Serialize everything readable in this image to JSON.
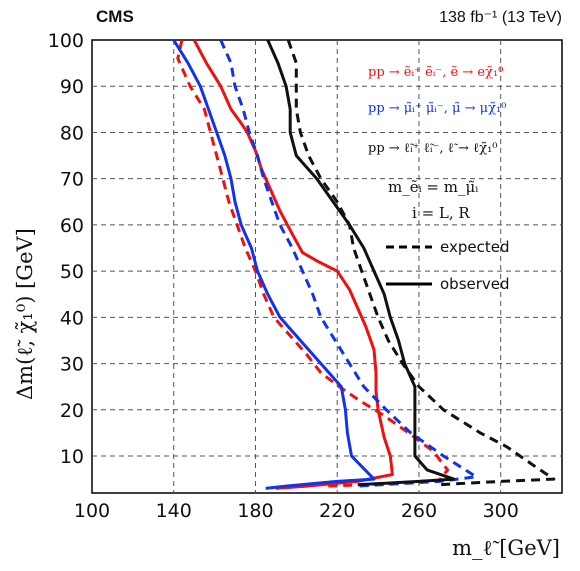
{
  "header": {
    "experiment": "CMS",
    "luminosity": "138 fb⁻¹ (13 TeV)"
  },
  "chart_data": {
    "type": "line",
    "xlabel": "m_ℓ̃ [GeV]",
    "ylabel": "Δm(ℓ̃, χ̃₁⁰) [GeV]",
    "xlim": [
      100,
      330
    ],
    "ylim": [
      2,
      100
    ],
    "x_ticks": [
      100,
      140,
      180,
      220,
      260,
      300
    ],
    "y_ticks": [
      10,
      20,
      30,
      40,
      50,
      60,
      70,
      80,
      90,
      100
    ],
    "grid": true,
    "grid_style": "dashed",
    "legend": {
      "processes": [
        {
          "text": "pp → ẽᵢ⁺ ẽᵢ⁻, ẽ → eχ̃₁⁰",
          "color": "#ee1111"
        },
        {
          "text": "pp → μ̃ᵢ⁺ μ̃ᵢ⁻, μ̃ → μχ̃₁⁰",
          "color": "#1133ee"
        },
        {
          "text": "pp → ℓ̃ᵢ⁺ ℓ̃ᵢ⁻, ℓ̃ → ℓχ̃₁⁰",
          "color": "#111111"
        }
      ],
      "mass_relation": "m_ẽᵢ = m_μ̃ᵢ",
      "index_relation": "i = L, R",
      "expected_label": "expected",
      "observed_label": "observed"
    },
    "series": [
      {
        "process": "selectron",
        "kind": "observed",
        "color": "#ee1111",
        "dash": false,
        "points": [
          [
            150,
            100
          ],
          [
            156,
            95
          ],
          [
            163,
            90
          ],
          [
            168,
            85
          ],
          [
            173,
            82
          ],
          [
            176,
            80
          ],
          [
            180,
            76
          ],
          [
            183,
            72
          ],
          [
            187,
            68
          ],
          [
            192,
            63
          ],
          [
            198,
            58
          ],
          [
            203,
            54
          ],
          [
            211,
            52
          ],
          [
            220,
            50
          ],
          [
            226,
            46
          ],
          [
            230,
            42
          ],
          [
            234,
            38
          ],
          [
            238,
            33
          ],
          [
            239,
            28
          ],
          [
            239,
            24
          ],
          [
            240,
            20
          ],
          [
            243,
            14
          ],
          [
            246,
            10
          ],
          [
            247,
            6
          ],
          [
            230,
            4.5
          ],
          [
            205,
            3.5
          ],
          [
            190,
            3
          ]
        ]
      },
      {
        "process": "selectron",
        "kind": "expected",
        "color": "#ee1111",
        "dash": true,
        "points": [
          [
            144,
            100
          ],
          [
            142,
            96
          ],
          [
            148,
            90
          ],
          [
            155,
            85
          ],
          [
            158,
            80
          ],
          [
            161,
            75
          ],
          [
            164,
            70
          ],
          [
            167,
            65
          ],
          [
            171,
            60
          ],
          [
            175,
            55
          ],
          [
            180,
            50
          ],
          [
            184,
            45
          ],
          [
            189,
            40
          ],
          [
            197,
            36
          ],
          [
            205,
            32
          ],
          [
            212,
            28
          ],
          [
            221,
            25
          ],
          [
            231,
            22
          ],
          [
            242,
            19
          ],
          [
            255,
            15
          ],
          [
            267,
            11
          ],
          [
            274,
            7
          ],
          [
            270,
            4.8
          ],
          [
            245,
            4
          ],
          [
            215,
            3.5
          ]
        ]
      },
      {
        "process": "smuon",
        "kind": "observed",
        "color": "#1133ee",
        "dash": false,
        "points": [
          [
            140,
            100
          ],
          [
            147,
            95
          ],
          [
            153,
            90
          ],
          [
            157,
            85
          ],
          [
            161,
            80
          ],
          [
            165,
            75
          ],
          [
            168,
            70
          ],
          [
            170,
            65
          ],
          [
            173,
            60
          ],
          [
            178,
            55
          ],
          [
            181,
            50
          ],
          [
            186,
            45
          ],
          [
            192,
            40
          ],
          [
            202,
            35
          ],
          [
            212,
            30
          ],
          [
            222,
            25
          ],
          [
            224,
            20
          ],
          [
            225,
            15
          ],
          [
            227,
            10
          ],
          [
            238,
            5
          ],
          [
            220,
            4.5
          ],
          [
            195,
            3.5
          ],
          [
            185,
            3
          ]
        ]
      },
      {
        "process": "smuon",
        "kind": "expected",
        "color": "#1133ee",
        "dash": true,
        "points": [
          [
            163,
            100
          ],
          [
            168,
            95
          ],
          [
            170,
            90
          ],
          [
            174,
            85
          ],
          [
            177,
            80
          ],
          [
            181,
            75
          ],
          [
            184,
            70
          ],
          [
            188,
            65
          ],
          [
            192,
            60
          ],
          [
            198,
            55
          ],
          [
            203,
            50
          ],
          [
            208,
            45
          ],
          [
            212,
            40
          ],
          [
            219,
            35
          ],
          [
            226,
            30
          ],
          [
            233,
            25
          ],
          [
            244,
            20
          ],
          [
            256,
            15
          ],
          [
            272,
            10
          ],
          [
            288,
            5.5
          ],
          [
            270,
            4.5
          ],
          [
            230,
            3.5
          ]
        ]
      },
      {
        "process": "slepton",
        "kind": "observed",
        "color": "#111111",
        "dash": false,
        "points": [
          [
            186,
            100
          ],
          [
            191,
            95
          ],
          [
            195,
            90
          ],
          [
            197,
            85
          ],
          [
            197,
            80
          ],
          [
            200,
            75
          ],
          [
            210,
            70
          ],
          [
            218,
            65
          ],
          [
            226,
            60
          ],
          [
            233,
            55
          ],
          [
            238,
            50
          ],
          [
            243,
            45
          ],
          [
            246,
            40
          ],
          [
            250,
            35
          ],
          [
            253,
            30
          ],
          [
            258,
            25
          ],
          [
            258,
            20
          ],
          [
            258,
            15
          ],
          [
            258,
            10
          ],
          [
            264,
            7
          ],
          [
            277,
            5
          ],
          [
            260,
            4.5
          ],
          [
            230,
            3.8
          ]
        ]
      },
      {
        "process": "slepton",
        "kind": "expected",
        "color": "#111111",
        "dash": true,
        "points": [
          [
            196,
            100
          ],
          [
            200,
            95
          ],
          [
            200,
            90
          ],
          [
            200,
            85
          ],
          [
            202,
            80
          ],
          [
            206,
            75
          ],
          [
            212,
            70
          ],
          [
            220,
            65
          ],
          [
            226,
            60
          ],
          [
            228,
            55
          ],
          [
            232,
            50
          ],
          [
            236,
            45
          ],
          [
            240,
            40
          ],
          [
            245,
            35
          ],
          [
            252,
            30
          ],
          [
            260,
            25
          ],
          [
            272,
            20
          ],
          [
            290,
            15
          ],
          [
            303,
            12
          ],
          [
            316,
            8
          ],
          [
            326,
            5
          ],
          [
            300,
            4.5
          ],
          [
            270,
            3.8
          ]
        ]
      }
    ]
  }
}
